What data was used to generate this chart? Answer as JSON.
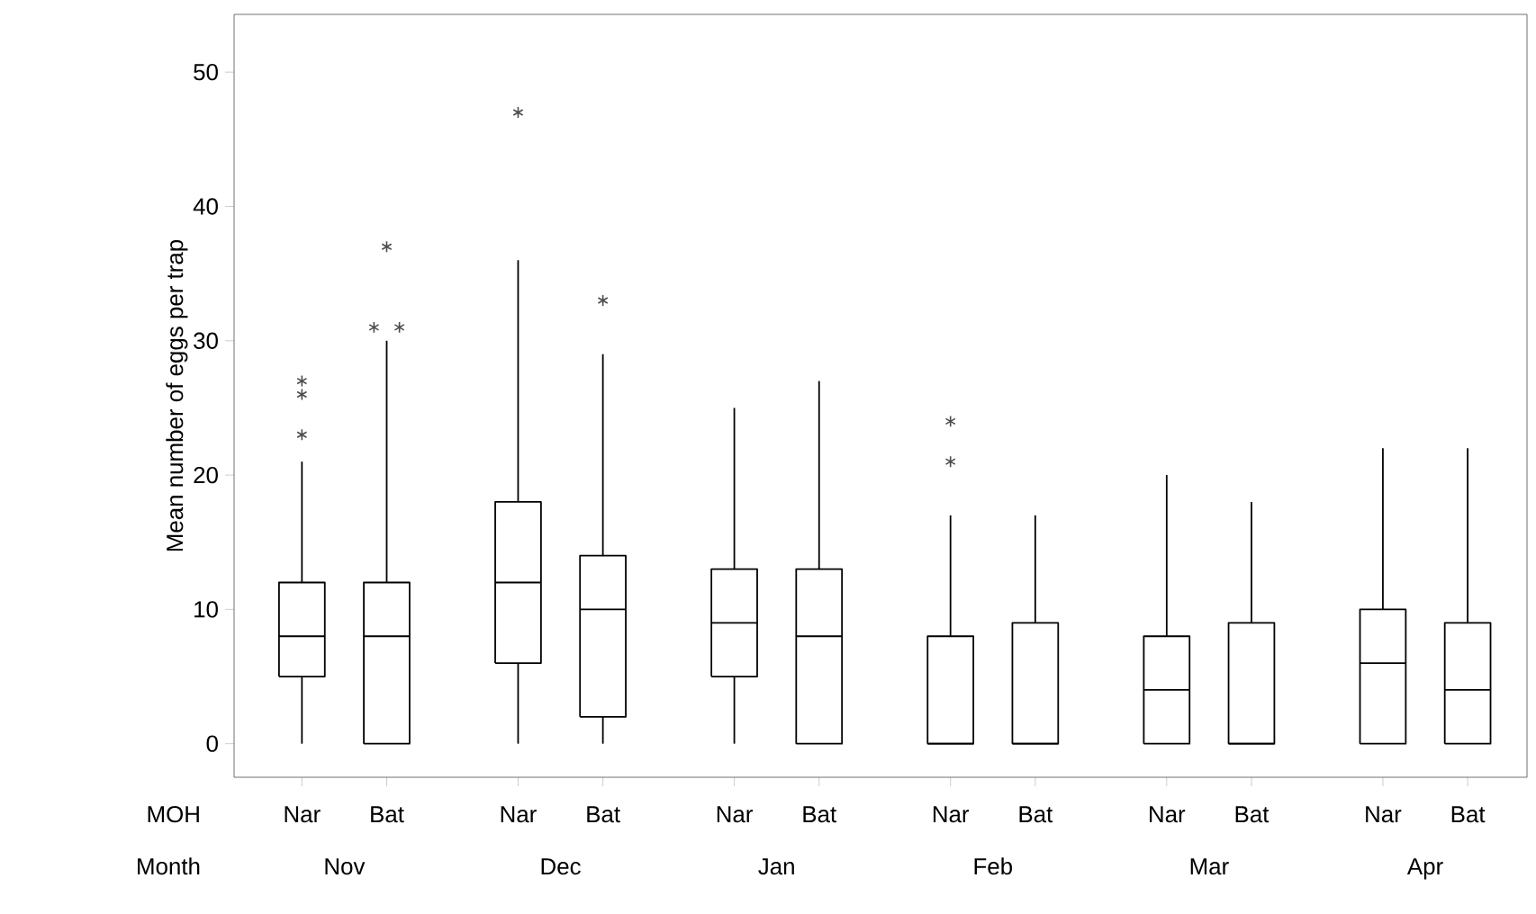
{
  "chart_data": {
    "type": "box",
    "ylabel": "Mean number of eggs per trap",
    "categories": [
      "Nar",
      "Bat",
      "Nar",
      "Bat",
      "Nar",
      "Bat",
      "Nar",
      "Bat",
      "Nar",
      "Bat",
      "Nar",
      "Bat"
    ],
    "boxes": [
      {
        "low": 0,
        "q1": 5,
        "median": 8,
        "q3": 12,
        "high": 21,
        "outliers": [
          23,
          26,
          27
        ]
      },
      {
        "low": 0,
        "q1": 0,
        "median": 8,
        "q3": 12,
        "high": 30,
        "outliers": [
          31,
          31,
          37
        ]
      },
      {
        "low": 0,
        "q1": 6,
        "median": 12,
        "q3": 18,
        "high": 36,
        "outliers": [
          47
        ]
      },
      {
        "low": 0,
        "q1": 2,
        "median": 10,
        "q3": 14,
        "high": 29,
        "outliers": [
          33
        ]
      },
      {
        "low": 0,
        "q1": 5,
        "median": 9,
        "q3": 13,
        "high": 25
      },
      {
        "low": 0,
        "q1": 0,
        "median": 8,
        "q3": 13,
        "high": 27
      },
      {
        "low": 0,
        "q1": 0,
        "median": 0,
        "q3": 8,
        "high": 17,
        "outliers": [
          21,
          24
        ]
      },
      {
        "low": 0,
        "q1": 0,
        "median": 0,
        "q3": 9,
        "high": 17
      },
      {
        "low": 0,
        "q1": 0,
        "median": 4,
        "q3": 8,
        "high": 20
      },
      {
        "low": 0,
        "q1": 0,
        "median": 0,
        "q3": 9,
        "high": 18
      },
      {
        "low": 0,
        "q1": 0,
        "median": 6,
        "q3": 10,
        "high": 22
      },
      {
        "low": 0,
        "q1": 0,
        "median": 4,
        "q3": 9,
        "high": 22
      }
    ],
    "ylim": [
      -2.5,
      54.3
    ],
    "yticks": [
      0,
      10,
      20,
      30,
      40,
      50
    ],
    "annotations": [
      "MOH",
      "Month",
      "Nov",
      "Dec",
      "Jan",
      "Feb",
      "Mar",
      "Apr"
    ]
  }
}
